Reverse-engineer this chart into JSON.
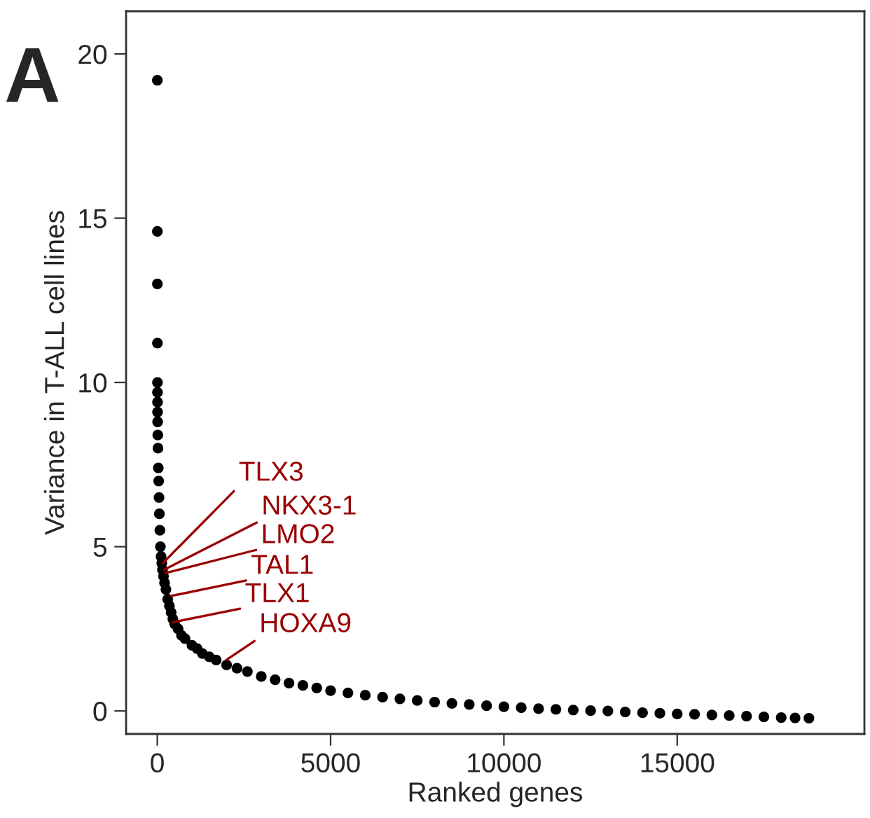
{
  "chart_data": {
    "type": "scatter",
    "xlabel": "Ranked genes",
    "ylabel": "Variance in T-ALL cell lines",
    "xlim": [
      -900,
      20400
    ],
    "ylim": [
      -0.7,
      21.3
    ],
    "xticks": [
      0,
      5000,
      10000,
      15000
    ],
    "yticks": [
      0,
      5,
      10,
      15,
      20
    ],
    "grid": false,
    "legend": false,
    "marker": "circle",
    "series": [
      {
        "color": "#000000",
        "x": [
          1,
          2,
          3,
          4,
          5,
          6,
          7,
          8,
          10,
          15,
          20,
          30,
          40,
          50,
          60,
          75,
          90,
          110,
          130,
          150,
          180,
          210,
          250,
          300,
          350,
          400,
          450,
          500,
          600,
          700,
          800,
          1000,
          1150,
          1300,
          1500,
          1700,
          2000,
          2300,
          2600,
          3000,
          3400,
          3800,
          4200,
          4600,
          5000,
          5500,
          6000,
          6500,
          7000,
          7500,
          8000,
          8500,
          9000,
          9500,
          10000,
          10500,
          11000,
          11500,
          12000,
          12500,
          13000,
          13500,
          14000,
          14500,
          15000,
          15500,
          16000,
          16500,
          17000,
          17500,
          18000,
          18400,
          18800
        ],
        "values": [
          19.2,
          14.6,
          13.0,
          11.2,
          10.0,
          9.7,
          9.4,
          9.1,
          8.8,
          8.4,
          8.0,
          7.4,
          7.0,
          6.5,
          6.0,
          5.5,
          5.0,
          4.7,
          4.5,
          4.3,
          4.1,
          3.9,
          3.7,
          3.4,
          3.2,
          3.0,
          2.8,
          2.65,
          2.5,
          2.3,
          2.2,
          2.0,
          1.9,
          1.75,
          1.65,
          1.55,
          1.4,
          1.3,
          1.2,
          1.05,
          0.95,
          0.85,
          0.78,
          0.7,
          0.62,
          0.55,
          0.48,
          0.42,
          0.37,
          0.32,
          0.27,
          0.23,
          0.2,
          0.16,
          0.13,
          0.1,
          0.07,
          0.05,
          0.03,
          0.01,
          0.0,
          -0.03,
          -0.05,
          -0.07,
          -0.09,
          -0.1,
          -0.12,
          -0.14,
          -0.16,
          -0.18,
          -0.2,
          -0.21,
          -0.22
        ]
      }
    ],
    "annotations": [
      "A",
      {
        "text": "TLX3",
        "x": 160,
        "y": 4.5
      },
      {
        "text": "NKX3-1",
        "x": 200,
        "y": 4.3
      },
      {
        "text": "LMO2",
        "x": 240,
        "y": 4.2
      },
      {
        "text": "TAL1",
        "x": 400,
        "y": 3.5
      },
      {
        "text": "TLX1",
        "x": 450,
        "y": 2.7
      },
      {
        "text": "HOXA9",
        "x": 1990,
        "y": 1.55
      }
    ]
  }
}
